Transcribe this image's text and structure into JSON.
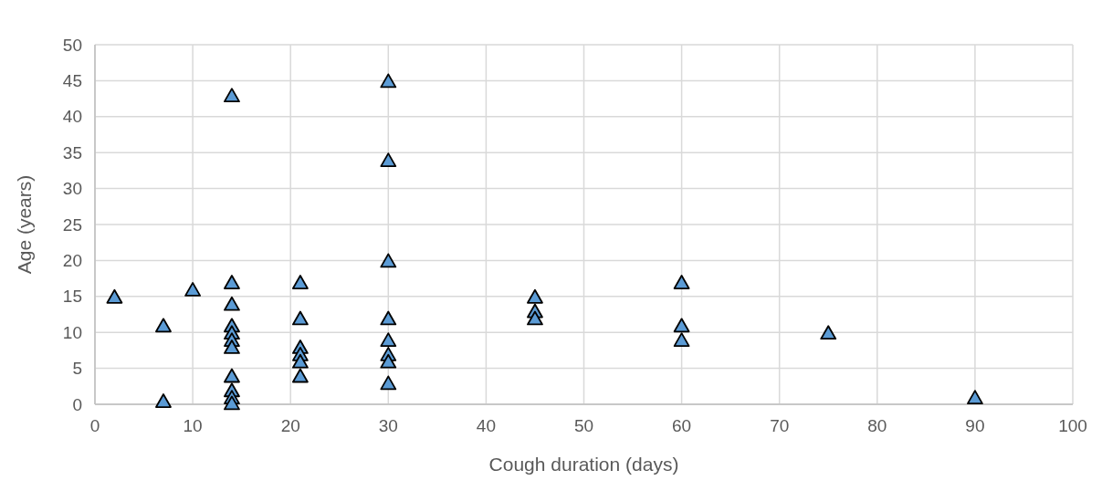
{
  "chart_data": {
    "type": "scatter",
    "xlabel": "Cough duration (days)",
    "ylabel": "Age (years)",
    "x": [
      2,
      7,
      7,
      10,
      14,
      14,
      14,
      14,
      14,
      14,
      14,
      14,
      14,
      14,
      14,
      21,
      21,
      21,
      21,
      21,
      21,
      30,
      30,
      30,
      30,
      30,
      30,
      30,
      30,
      45,
      45,
      45,
      60,
      60,
      60,
      75,
      90
    ],
    "values": [
      15,
      11,
      0.5,
      16,
      43,
      17,
      14,
      11,
      10,
      9,
      8,
      4,
      2,
      1,
      0.2,
      17,
      12,
      8,
      7,
      6,
      4,
      45,
      34,
      20,
      12,
      9,
      7,
      6,
      3,
      15,
      13,
      12,
      17,
      11,
      9,
      10,
      1
    ],
    "color": "#5b9bd5",
    "marker": "triangle",
    "xlim": [
      0,
      100
    ],
    "xticks": [
      0,
      10,
      20,
      30,
      40,
      50,
      60,
      70,
      80,
      90,
      100
    ],
    "ylim": [
      0,
      50
    ],
    "yticks": [
      0,
      5,
      10,
      15,
      20,
      25,
      30,
      35,
      40,
      45,
      50
    ],
    "grid": true
  }
}
